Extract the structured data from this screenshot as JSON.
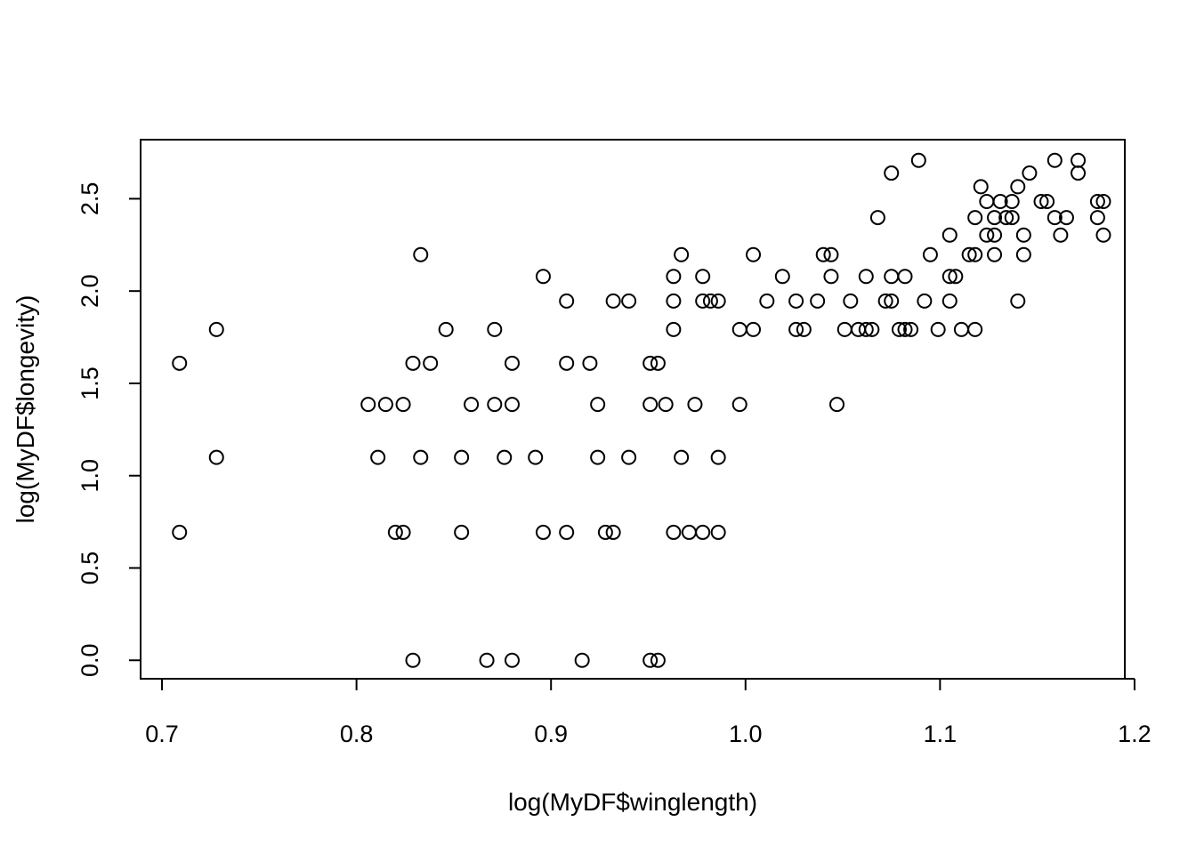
{
  "chart_data": {
    "type": "scatter",
    "xlabel": "log(MyDF$winglength)",
    "ylabel": "log(MyDF$longevity)",
    "xlim": [
      0.689,
      1.195
    ],
    "ylim": [
      -0.1,
      2.82
    ],
    "xticks": [
      0.7,
      0.8,
      0.9,
      1.0,
      1.1,
      1.2
    ],
    "xtick_labels": [
      "0.7",
      "0.8",
      "0.9",
      "1.0",
      "1.1",
      "1.2"
    ],
    "yticks": [
      0.0,
      0.5,
      1.0,
      1.5,
      2.0,
      2.5
    ],
    "ytick_labels": [
      "0.0",
      "0.5",
      "1.0",
      "1.5",
      "2.0",
      "2.5"
    ],
    "grid": false,
    "marker": "open-circle",
    "points": [
      [
        0.709,
        1.609
      ],
      [
        0.709,
        0.693
      ],
      [
        0.728,
        1.792
      ],
      [
        0.728,
        1.099
      ],
      [
        0.806,
        1.386
      ],
      [
        0.811,
        1.099
      ],
      [
        0.815,
        1.386
      ],
      [
        0.82,
        0.693
      ],
      [
        0.824,
        1.386
      ],
      [
        0.824,
        0.693
      ],
      [
        0.829,
        1.609
      ],
      [
        0.829,
        0.0
      ],
      [
        0.833,
        2.197
      ],
      [
        0.833,
        1.099
      ],
      [
        0.838,
        1.609
      ],
      [
        0.846,
        1.792
      ],
      [
        0.854,
        1.099
      ],
      [
        0.854,
        0.693
      ],
      [
        0.859,
        1.386
      ],
      [
        0.867,
        0.0
      ],
      [
        0.871,
        1.792
      ],
      [
        0.871,
        1.386
      ],
      [
        0.876,
        1.099
      ],
      [
        0.88,
        1.609
      ],
      [
        0.88,
        1.386
      ],
      [
        0.88,
        0.0
      ],
      [
        0.892,
        1.099
      ],
      [
        0.896,
        2.079
      ],
      [
        0.896,
        0.693
      ],
      [
        0.908,
        1.946
      ],
      [
        0.908,
        1.609
      ],
      [
        0.908,
        0.693
      ],
      [
        0.916,
        0.0
      ],
      [
        0.92,
        1.609
      ],
      [
        0.924,
        1.386
      ],
      [
        0.924,
        1.099
      ],
      [
        0.928,
        0.693
      ],
      [
        0.932,
        1.946
      ],
      [
        0.932,
        0.693
      ],
      [
        0.94,
        1.946
      ],
      [
        0.94,
        1.099
      ],
      [
        0.951,
        1.609
      ],
      [
        0.951,
        1.386
      ],
      [
        0.951,
        0.0
      ],
      [
        0.955,
        1.609
      ],
      [
        0.955,
        0.0
      ],
      [
        0.959,
        1.386
      ],
      [
        0.963,
        2.079
      ],
      [
        0.963,
        1.946
      ],
      [
        0.963,
        1.792
      ],
      [
        0.963,
        0.693
      ],
      [
        0.967,
        2.197
      ],
      [
        0.967,
        1.099
      ],
      [
        0.971,
        0.693
      ],
      [
        0.974,
        1.386
      ],
      [
        0.978,
        2.079
      ],
      [
        0.978,
        1.946
      ],
      [
        0.978,
        0.693
      ],
      [
        0.982,
        1.946
      ],
      [
        0.986,
        1.946
      ],
      [
        0.986,
        1.099
      ],
      [
        0.986,
        0.693
      ],
      [
        0.997,
        1.792
      ],
      [
        0.997,
        1.386
      ],
      [
        1.004,
        2.197
      ],
      [
        1.004,
        1.792
      ],
      [
        1.011,
        1.946
      ],
      [
        1.019,
        2.079
      ],
      [
        1.026,
        1.946
      ],
      [
        1.026,
        1.792
      ],
      [
        1.03,
        1.792
      ],
      [
        1.037,
        1.946
      ],
      [
        1.04,
        2.197
      ],
      [
        1.044,
        2.197
      ],
      [
        1.044,
        2.079
      ],
      [
        1.047,
        1.386
      ],
      [
        1.051,
        1.792
      ],
      [
        1.054,
        1.946
      ],
      [
        1.058,
        1.792
      ],
      [
        1.062,
        2.079
      ],
      [
        1.062,
        1.792
      ],
      [
        1.065,
        1.792
      ],
      [
        1.068,
        2.398
      ],
      [
        1.072,
        1.946
      ],
      [
        1.075,
        2.639
      ],
      [
        1.075,
        2.079
      ],
      [
        1.075,
        1.946
      ],
      [
        1.079,
        1.792
      ],
      [
        1.082,
        2.079
      ],
      [
        1.082,
        1.792
      ],
      [
        1.085,
        1.792
      ],
      [
        1.089,
        2.708
      ],
      [
        1.092,
        1.946
      ],
      [
        1.095,
        2.197
      ],
      [
        1.099,
        1.792
      ],
      [
        1.105,
        2.303
      ],
      [
        1.105,
        2.079
      ],
      [
        1.105,
        1.946
      ],
      [
        1.108,
        2.079
      ],
      [
        1.111,
        1.792
      ],
      [
        1.115,
        2.197
      ],
      [
        1.118,
        2.398
      ],
      [
        1.118,
        2.197
      ],
      [
        1.118,
        1.792
      ],
      [
        1.121,
        2.565
      ],
      [
        1.124,
        2.485
      ],
      [
        1.124,
        2.303
      ],
      [
        1.128,
        2.398
      ],
      [
        1.128,
        2.303
      ],
      [
        1.128,
        2.197
      ],
      [
        1.131,
        2.485
      ],
      [
        1.134,
        2.398
      ],
      [
        1.137,
        2.485
      ],
      [
        1.137,
        2.398
      ],
      [
        1.14,
        2.565
      ],
      [
        1.14,
        1.946
      ],
      [
        1.143,
        2.303
      ],
      [
        1.143,
        2.197
      ],
      [
        1.146,
        2.639
      ],
      [
        1.152,
        2.485
      ],
      [
        1.155,
        2.485
      ],
      [
        1.159,
        2.708
      ],
      [
        1.159,
        2.398
      ],
      [
        1.162,
        2.303
      ],
      [
        1.165,
        2.398
      ],
      [
        1.171,
        2.708
      ],
      [
        1.171,
        2.639
      ],
      [
        1.181,
        2.485
      ],
      [
        1.181,
        2.398
      ],
      [
        1.184,
        2.485
      ],
      [
        1.184,
        2.303
      ]
    ]
  }
}
